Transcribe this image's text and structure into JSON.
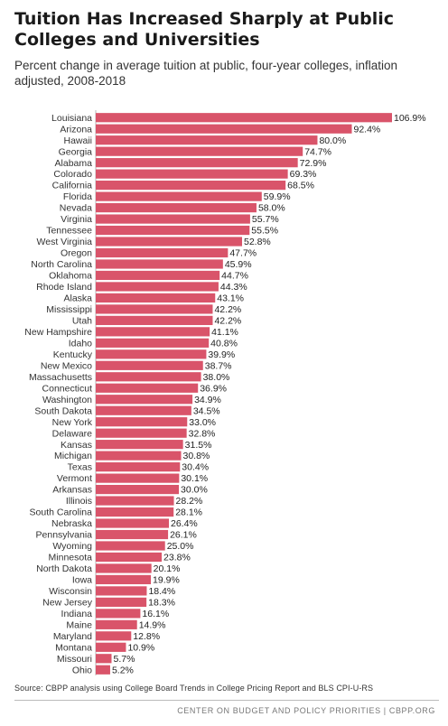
{
  "header": {
    "title": "Tuition Has Increased Sharply at Public Colleges and Universities",
    "subtitle": "Percent change in average tuition at public, four-year colleges, inflation adjusted, 2008-2018"
  },
  "chart_data": {
    "type": "bar",
    "orientation": "horizontal",
    "title": "Tuition Has Increased Sharply at Public Colleges and Universities",
    "subtitle": "Percent change in average tuition at public, four-year colleges, inflation adjusted, 2008-2018",
    "value_suffix": "%",
    "bar_color": "#d9546a",
    "xlim": [
      0,
      106.9
    ],
    "grid": false,
    "categories": [
      "Louisiana",
      "Arizona",
      "Hawaii",
      "Georgia",
      "Alabama",
      "Colorado",
      "California",
      "Florida",
      "Nevada",
      "Virginia",
      "Tennessee",
      "West Virginia",
      "Oregon",
      "North Carolina",
      "Oklahoma",
      "Rhode Island",
      "Alaska",
      "Mississippi",
      "Utah",
      "New Hampshire",
      "Idaho",
      "Kentucky",
      "New Mexico",
      "Massachusetts",
      "Connecticut",
      "Washington",
      "South Dakota",
      "New York",
      "Delaware",
      "Kansas",
      "Michigan",
      "Texas",
      "Vermont",
      "Arkansas",
      "Illinois",
      "South Carolina",
      "Nebraska",
      "Pennsylvania",
      "Wyoming",
      "Minnesota",
      "North Dakota",
      "Iowa",
      "Wisconsin",
      "New Jersey",
      "Indiana",
      "Maine",
      "Maryland",
      "Montana",
      "Missouri",
      "Ohio"
    ],
    "values": [
      106.9,
      92.4,
      80.0,
      74.7,
      72.9,
      69.3,
      68.5,
      59.9,
      58.0,
      55.7,
      55.5,
      52.8,
      47.7,
      45.9,
      44.7,
      44.3,
      43.1,
      42.2,
      42.2,
      41.1,
      40.8,
      39.9,
      38.7,
      38.0,
      36.9,
      34.9,
      34.5,
      33.0,
      32.8,
      31.5,
      30.8,
      30.4,
      30.1,
      30.0,
      28.2,
      28.1,
      26.4,
      26.1,
      25.0,
      23.8,
      20.1,
      19.9,
      18.4,
      18.3,
      16.1,
      14.9,
      12.8,
      10.9,
      5.7,
      5.2
    ]
  },
  "footer": {
    "source": "Source: CBPP analysis using College Board Trends in College Pricing Report and BLS CPI-U-RS",
    "org": "CENTER ON BUDGET AND POLICY PRIORITIES | CBPP.ORG"
  }
}
